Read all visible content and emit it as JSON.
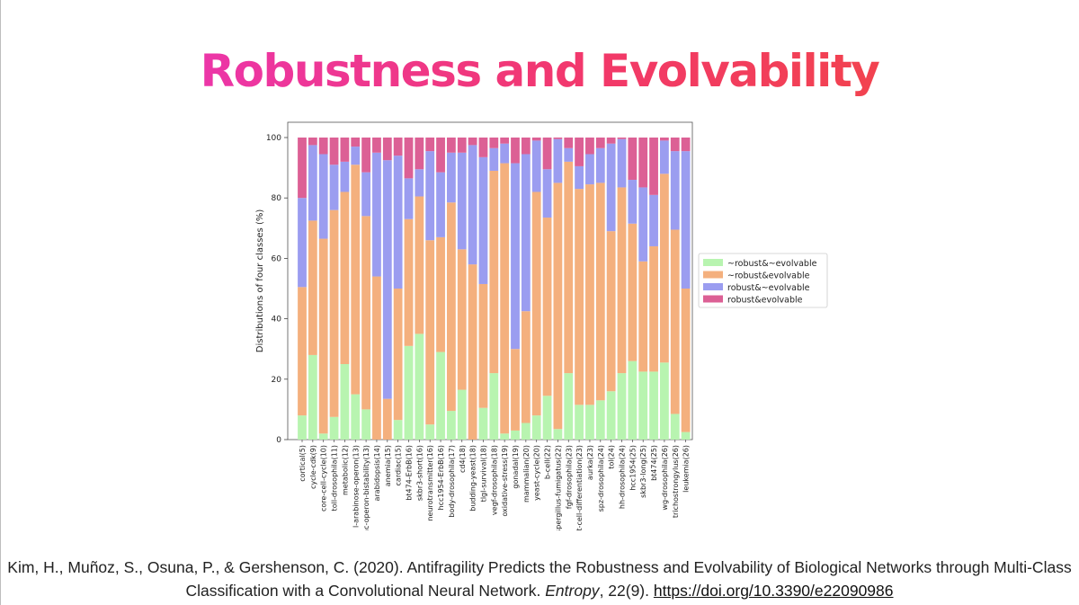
{
  "slide": {
    "title": "Robustness and Evolvability"
  },
  "citation": {
    "text_before": "Kim, H., Muñoz, S., Osuna, P., & Gershenson, C. (2020). Antifragility Predicts the Robustness and Evolvability of Biological Networks through Multi-Class Classification with a Convolutional Neural Network.",
    "journal": "Entropy",
    "volume": ", 22(9).",
    "link": "https://doi.org/10.3390/e22090986"
  },
  "chart_data": {
    "type": "bar",
    "stacked": true,
    "title": "",
    "xlabel": "",
    "ylabel": "Distributions of four classes (%)",
    "ylim": [
      0,
      100
    ],
    "yticks": [
      0,
      20,
      40,
      60,
      80,
      100
    ],
    "grid": false,
    "legend_position": "center-right",
    "categories": [
      "cortical(5)",
      "cycle-cdk(9)",
      "core-cell-cycle(10)",
      "toll-drosophila(11)",
      "metabolic(12)",
      "l-arabinose-operon(13)",
      "lac-operon-bistability(13)",
      "arabidopsis(14)",
      "anemia(15)",
      "cardiac(15)",
      "bt474-ErbB(16)",
      "skbr3-short(16)",
      "neurotransmitter(16)",
      "hcc1954-ErbB(16)",
      "body-drosophila(17)",
      "cd4(18)",
      "budding-yeast(18)",
      "tlgl-survival(18)",
      "vegf-drosophila(18)",
      "oxidative-stress(19)",
      "gonadal(19)",
      "mammalian(20)",
      "yeast-cycle(20)",
      "b-cell(22)",
      "aspergillus-fumigatus(22)",
      "fgf-drosophila(23)",
      "t-cell-differentiation(23)",
      "aurka(23)",
      "spz-drosophila(24)",
      "tol(24)",
      "hh-drosophila(24)",
      "hcc1954(25)",
      "skbr3-long(25)",
      "bt474(25)",
      "wg-drosophila(26)",
      "trichostrongylus(26)",
      "leukemia(26)"
    ],
    "series": [
      {
        "name": "~robust&~evolvable",
        "color": "#b8f4b0",
        "values": [
          8,
          28,
          2,
          7.5,
          25,
          15,
          10,
          0,
          0,
          6.5,
          31,
          35,
          5,
          29,
          9.5,
          16.5,
          0,
          10.5,
          22,
          2,
          3,
          5.5,
          8,
          14.5,
          3.5,
          22,
          11.5,
          11.5,
          13,
          16,
          22,
          26,
          22.5,
          22.5,
          25.5,
          8.5,
          2.5
        ]
      },
      {
        "name": "~robust&evolvable",
        "color": "#f4b07e",
        "values": [
          42.5,
          44.5,
          64.5,
          68.5,
          57,
          76,
          64,
          54,
          13.5,
          43.5,
          42,
          45.5,
          61,
          38,
          69,
          46.5,
          58,
          41,
          67,
          89.5,
          27,
          37,
          74,
          59,
          81.5,
          70,
          71.5,
          73,
          72,
          53,
          61.5,
          45.5,
          36.5,
          41.5,
          62.5,
          61,
          47.5
        ]
      },
      {
        "name": "robust&~evolvable",
        "color": "#9b9df0",
        "values": [
          29.5,
          25,
          28,
          15,
          10,
          6,
          14.5,
          41,
          79,
          44,
          13.5,
          9,
          29.5,
          21.5,
          16.5,
          32,
          39.5,
          42,
          7.5,
          6.5,
          61.5,
          52,
          17,
          16,
          14.5,
          4.5,
          7.5,
          10,
          11.5,
          29,
          16,
          14.5,
          24.5,
          17,
          11,
          26,
          45.5
        ]
      },
      {
        "name": "robust&evolvable",
        "color": "#dc6095",
        "values": [
          20,
          2.5,
          5.5,
          9,
          8,
          3,
          11.5,
          5,
          7.5,
          6,
          13.5,
          10.5,
          4.5,
          11.5,
          5,
          5,
          2.5,
          6.5,
          3.5,
          2,
          8.5,
          5.5,
          1,
          10.5,
          0.5,
          3.5,
          9.5,
          5.5,
          3.5,
          2,
          0.5,
          14,
          16.5,
          19,
          1,
          4.5,
          4.5
        ]
      }
    ]
  }
}
